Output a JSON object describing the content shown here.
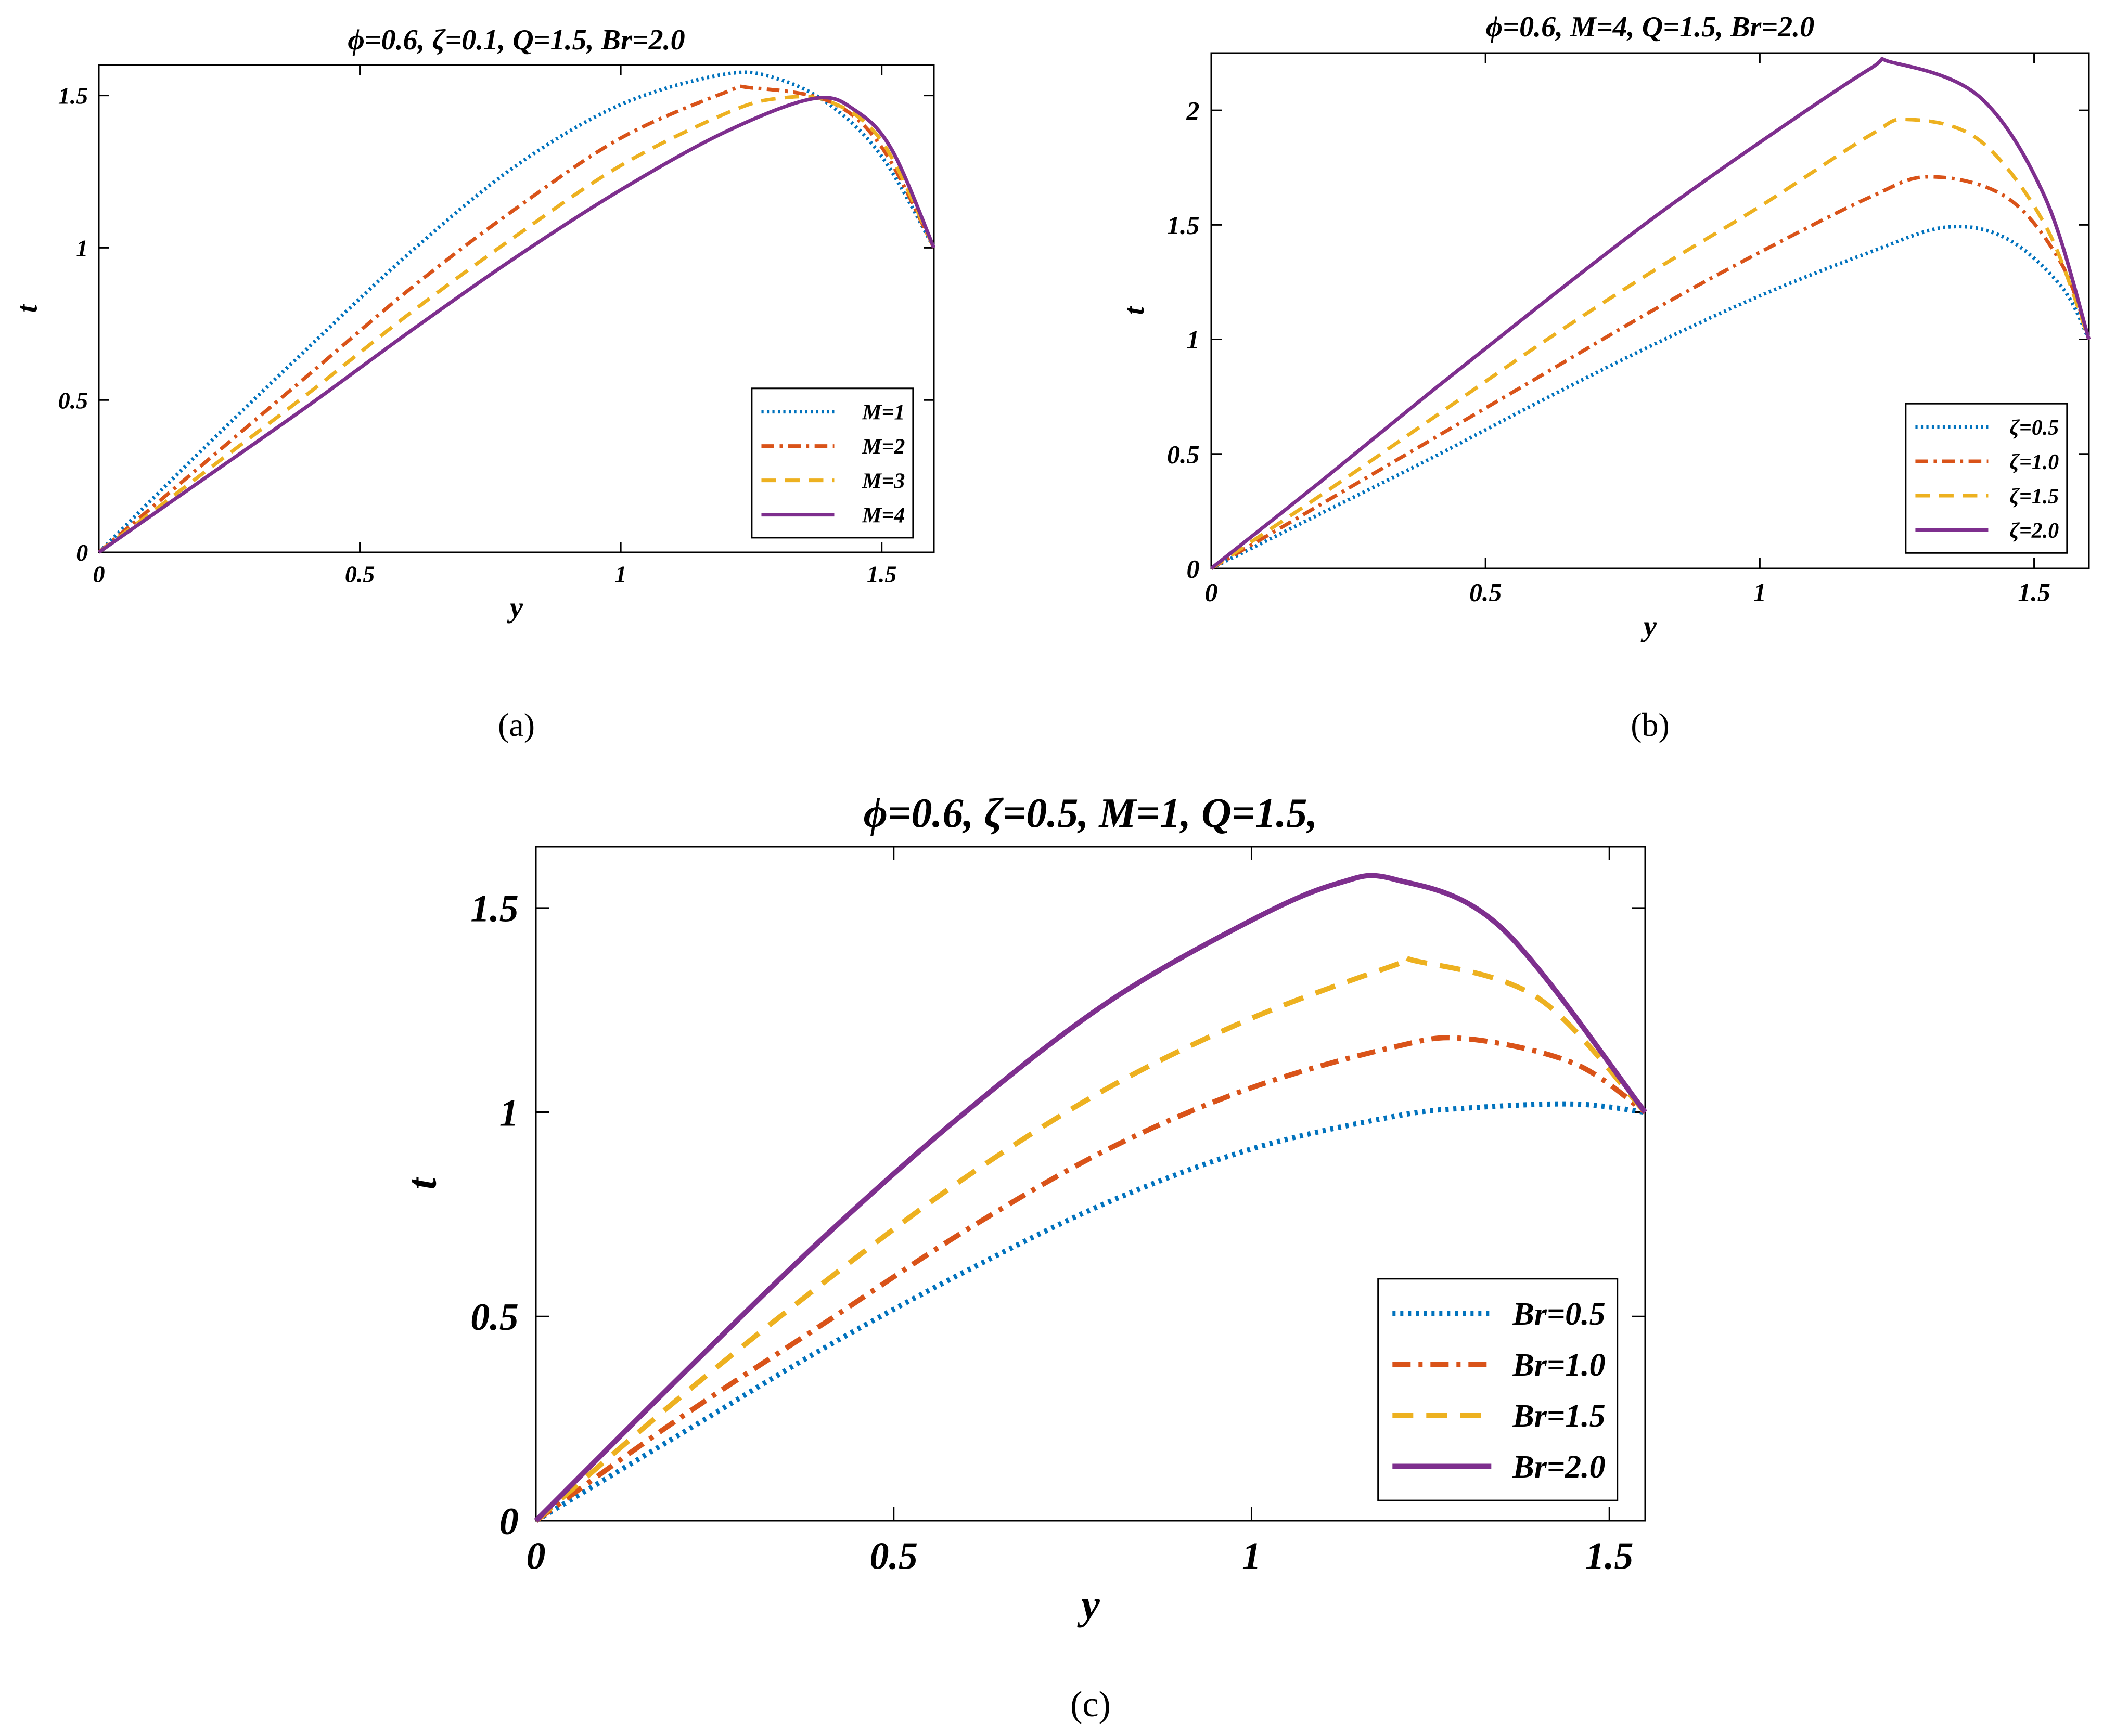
{
  "colors": {
    "M1": "#0072BD",
    "M2": "#D95319",
    "M3": "#EDB120",
    "M4": "#7E2F8E"
  },
  "chart_data": [
    {
      "type": "line",
      "title": "ϕ=0.6, ζ=0.1, Q=1.5, Br=2.0",
      "caption": "(a)",
      "xlabel": "y",
      "ylabel": "t",
      "xlim": [
        0,
        1.6
      ],
      "ylim": [
        0,
        1.6
      ],
      "xticks": [
        0,
        0.5,
        1,
        1.5
      ],
      "yticks": [
        0,
        0.5,
        1,
        1.5
      ],
      "xtick_labels": [
        "0",
        "0.5",
        "1",
        "1.5"
      ],
      "ytick_labels": [
        "0",
        "0.5",
        "1",
        "1.5"
      ],
      "legend_position": "bottom-right",
      "series": [
        {
          "name": "M=1",
          "style": "dotted",
          "color": "#0072BD",
          "x": [
            0,
            0.2,
            0.4,
            0.6,
            0.8,
            1.0,
            1.2,
            1.3,
            1.4,
            1.5,
            1.6
          ],
          "y": [
            0,
            0.34,
            0.67,
            0.99,
            1.27,
            1.47,
            1.57,
            1.555,
            1.47,
            1.3,
            1.0
          ]
        },
        {
          "name": "M=2",
          "style": "dashdot",
          "color": "#D95319",
          "x": [
            0,
            0.2,
            0.4,
            0.6,
            0.8,
            1.0,
            1.2,
            1.25,
            1.4,
            1.5,
            1.6
          ],
          "y": [
            0,
            0.29,
            0.58,
            0.87,
            1.13,
            1.36,
            1.51,
            1.525,
            1.48,
            1.33,
            1.0
          ]
        },
        {
          "name": "M=3",
          "style": "dashed",
          "color": "#EDB120",
          "x": [
            0,
            0.2,
            0.4,
            0.6,
            0.8,
            1.0,
            1.2,
            1.3,
            1.4,
            1.5,
            1.6
          ],
          "y": [
            0,
            0.26,
            0.52,
            0.79,
            1.04,
            1.27,
            1.44,
            1.49,
            1.48,
            1.35,
            1.0
          ]
        },
        {
          "name": "M=4",
          "style": "solid",
          "color": "#7E2F8E",
          "x": [
            0,
            0.2,
            0.4,
            0.6,
            0.8,
            1.0,
            1.2,
            1.37,
            1.45,
            1.52,
            1.6
          ],
          "y": [
            0,
            0.24,
            0.48,
            0.73,
            0.97,
            1.19,
            1.38,
            1.49,
            1.45,
            1.32,
            1.0
          ]
        }
      ]
    },
    {
      "type": "line",
      "title": "ϕ=0.6, M=4, Q=1.5, Br=2.0",
      "caption": "(b)",
      "xlabel": "y",
      "ylabel": "t",
      "xlim": [
        0,
        1.6
      ],
      "ylim": [
        0,
        2.25
      ],
      "xticks": [
        0,
        0.5,
        1,
        1.5
      ],
      "yticks": [
        0,
        0.5,
        1,
        1.5,
        2
      ],
      "xtick_labels": [
        "0",
        "0.5",
        "1",
        "1.5"
      ],
      "ytick_labels": [
        "0",
        "0.5",
        "1",
        "1.5",
        "2"
      ],
      "legend_position": "bottom-right",
      "series": [
        {
          "name": "ζ=0.5",
          "style": "dotted",
          "color": "#0072BD",
          "x": [
            0,
            0.2,
            0.4,
            0.6,
            0.8,
            1.0,
            1.2,
            1.34,
            1.45,
            1.55,
            1.6
          ],
          "y": [
            0,
            0.24,
            0.48,
            0.73,
            0.97,
            1.19,
            1.38,
            1.49,
            1.44,
            1.23,
            1.0
          ]
        },
        {
          "name": "ζ=1.0",
          "style": "dashdot",
          "color": "#D95319",
          "x": [
            0,
            0.2,
            0.4,
            0.6,
            0.8,
            1.0,
            1.2,
            1.31,
            1.45,
            1.55,
            1.6
          ],
          "y": [
            0,
            0.28,
            0.56,
            0.84,
            1.12,
            1.38,
            1.62,
            1.71,
            1.62,
            1.33,
            1.0
          ]
        },
        {
          "name": "ζ=1.5",
          "style": "dashed",
          "color": "#EDB120",
          "x": [
            0,
            0.2,
            0.4,
            0.6,
            0.8,
            1.0,
            1.2,
            1.27,
            1.4,
            1.52,
            1.6
          ],
          "y": [
            0,
            0.32,
            0.65,
            0.98,
            1.29,
            1.58,
            1.89,
            1.96,
            1.87,
            1.5,
            1.0
          ]
        },
        {
          "name": "ζ=2.0",
          "style": "solid",
          "color": "#7E2F8E",
          "x": [
            0,
            0.2,
            0.4,
            0.6,
            0.8,
            1.0,
            1.2,
            1.24,
            1.4,
            1.52,
            1.6
          ],
          "y": [
            0,
            0.38,
            0.77,
            1.15,
            1.52,
            1.86,
            2.18,
            2.21,
            2.06,
            1.62,
            1.0
          ]
        }
      ]
    },
    {
      "type": "line",
      "title": "ϕ=0.6, ζ=0.5, M=1, Q=1.5,",
      "caption": "(c)",
      "xlabel": "y",
      "ylabel": "t",
      "xlim": [
        0,
        1.55
      ],
      "ylim": [
        0,
        1.65
      ],
      "xticks": [
        0,
        0.5,
        1,
        1.5
      ],
      "yticks": [
        0,
        0.5,
        1,
        1.5
      ],
      "xtick_labels": [
        "0",
        "0.5",
        "1",
        "1.5"
      ],
      "ytick_labels": [
        "0",
        "0.5",
        "1",
        "1.5"
      ],
      "legend_position": "bottom-right",
      "series": [
        {
          "name": "Br=0.5",
          "style": "dotted",
          "color": "#0072BD",
          "x": [
            0,
            0.2,
            0.4,
            0.6,
            0.8,
            1.0,
            1.2,
            1.3,
            1.45,
            1.55
          ],
          "y": [
            0,
            0.21,
            0.42,
            0.61,
            0.78,
            0.91,
            0.99,
            1.01,
            1.02,
            1.0
          ]
        },
        {
          "name": "Br=1.0",
          "style": "dashdot",
          "color": "#D95319",
          "x": [
            0,
            0.2,
            0.4,
            0.6,
            0.8,
            1.0,
            1.2,
            1.3,
            1.45,
            1.55
          ],
          "y": [
            0,
            0.25,
            0.48,
            0.71,
            0.91,
            1.06,
            1.16,
            1.18,
            1.12,
            1.0
          ]
        },
        {
          "name": "Br=1.5",
          "style": "dashed",
          "color": "#EDB120",
          "x": [
            0,
            0.2,
            0.4,
            0.6,
            0.8,
            1.0,
            1.2,
            1.23,
            1.4,
            1.55
          ],
          "y": [
            0,
            0.3,
            0.58,
            0.84,
            1.06,
            1.23,
            1.36,
            1.37,
            1.28,
            1.0
          ]
        },
        {
          "name": "Br=2.0",
          "style": "solid",
          "color": "#7E2F8E",
          "x": [
            0,
            0.2,
            0.4,
            0.6,
            0.8,
            1.0,
            1.12,
            1.2,
            1.35,
            1.55
          ],
          "y": [
            0,
            0.35,
            0.69,
            1.0,
            1.27,
            1.47,
            1.56,
            1.57,
            1.45,
            1.0
          ]
        }
      ]
    }
  ]
}
